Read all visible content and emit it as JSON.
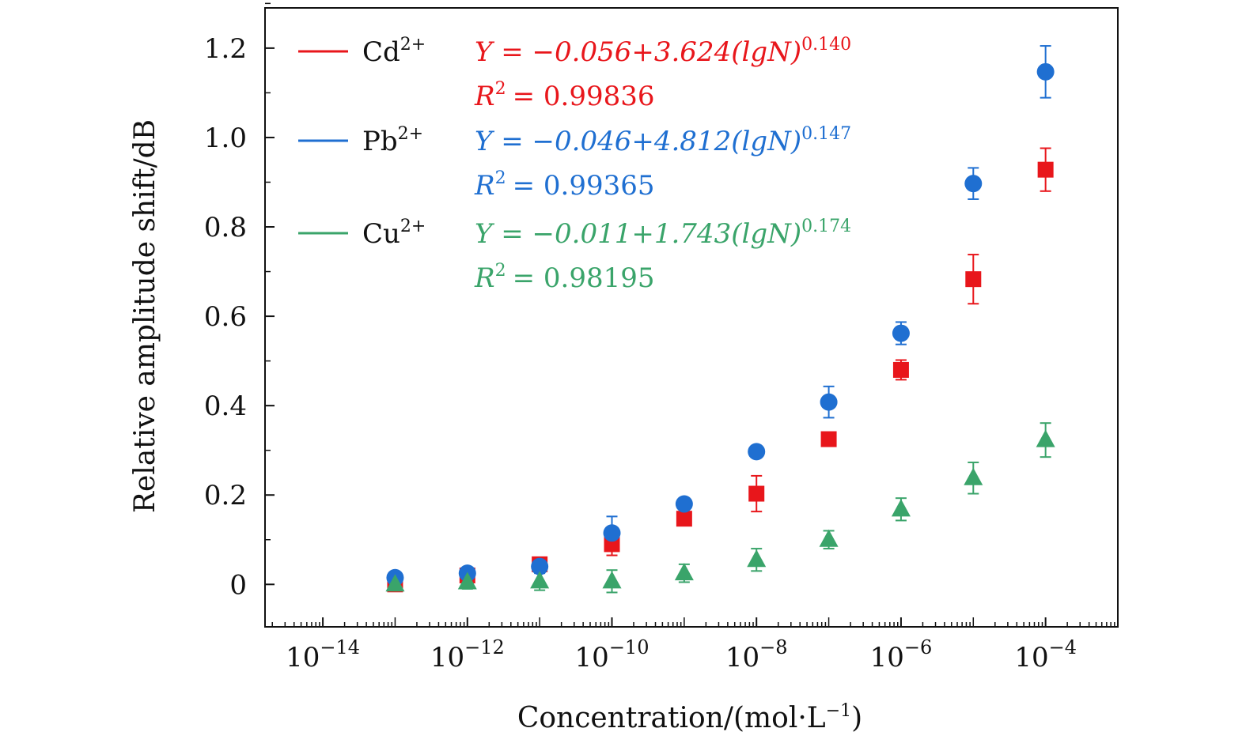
{
  "chart_data": {
    "type": "scatter",
    "title": "",
    "xlabel": "Concentration/(mol·L",
    "xlabel_sup": "−1",
    "xlabel_close": ")",
    "ylabel": "Relative amplitude shift/dB",
    "xscale": "log",
    "xlim_exp": [
      -14.8,
      -3.0
    ],
    "ylim": [
      -0.095,
      1.29
    ],
    "x_ticks_exp": [
      -14,
      -12,
      -10,
      -8,
      -6,
      -4
    ],
    "x_tick_base": "10",
    "x_tick_labels": [
      "−14",
      "−12",
      "−10",
      "−8",
      "−6",
      "−4"
    ],
    "y_ticks": [
      0,
      0.2,
      0.4,
      0.6,
      0.8,
      1.0,
      1.2
    ],
    "y_tick_labels": [
      "0",
      "0.2",
      "0.4",
      "0.6",
      "0.8",
      "1.0",
      "1.2"
    ],
    "x_exponents": [
      -13,
      -12,
      -11,
      -10,
      -9,
      -8,
      -7,
      -6,
      -5,
      -4
    ],
    "series": [
      {
        "name": "Cd",
        "name_sup": "2+",
        "color": "#e8161b",
        "marker": "square",
        "values": [
          0.0,
          0.02,
          0.045,
          0.09,
          0.147,
          0.203,
          0.325,
          0.48,
          0.683,
          0.928
        ],
        "errors": [
          0.005,
          0.01,
          0.015,
          0.025,
          0.01,
          0.04,
          0.01,
          0.022,
          0.055,
          0.048
        ],
        "fit": {
          "a": -0.056,
          "b": 3.624,
          "c": 0.14,
          "offset": 14
        },
        "equation": "Y = −0.056+3.624(lgN)",
        "equation_sup": "0.140",
        "r2_label": "R",
        "r2_sup": "2",
        "r2": "= 0.99836"
      },
      {
        "name": "Pb",
        "name_sup": "2+",
        "color": "#1f6fd1",
        "marker": "circle",
        "values": [
          0.015,
          0.025,
          0.04,
          0.115,
          0.18,
          0.297,
          0.408,
          0.562,
          0.897,
          1.147
        ],
        "errors": [
          0.005,
          0.01,
          0.015,
          0.037,
          0.01,
          0.01,
          0.035,
          0.025,
          0.035,
          0.058
        ],
        "fit": {
          "a": -0.046,
          "b": 4.812,
          "c": 0.147,
          "offset": 14
        },
        "equation": "Y = −0.046+4.812(lgN)",
        "equation_sup": "0.147",
        "r2_label": "R",
        "r2_sup": "2",
        "r2": "= 0.99365"
      },
      {
        "name": "Cu",
        "name_sup": "2+",
        "color": "#3aa46a",
        "marker": "triangle",
        "values": [
          0.0,
          0.005,
          0.007,
          0.007,
          0.025,
          0.055,
          0.1,
          0.168,
          0.238,
          0.323
        ],
        "errors": [
          0.005,
          0.015,
          0.02,
          0.025,
          0.02,
          0.025,
          0.02,
          0.025,
          0.035,
          0.038
        ],
        "fit": {
          "a": -0.011,
          "b": 1.743,
          "c": 0.174,
          "offset": 14
        },
        "equation": "Y = −0.011+1.743(lgN)",
        "equation_sup": "0.174",
        "r2_label": "R",
        "r2_sup": "2",
        "r2": "= 0.98195"
      }
    ]
  }
}
